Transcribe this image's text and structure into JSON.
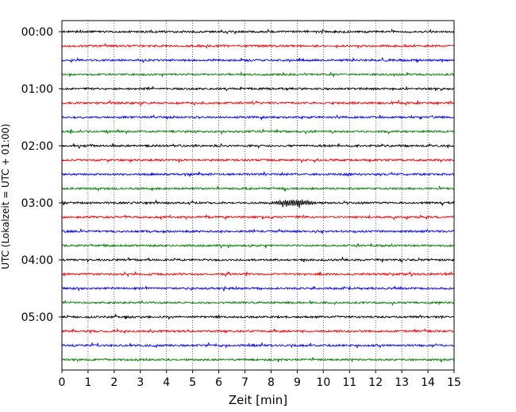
{
  "chart_data": {
    "type": "line",
    "title": "",
    "xlabel": "Zeit  [min]",
    "ylabel": "UTC (Lokalzeit = UTC + 01:00)",
    "xlim": [
      0,
      15
    ],
    "x_ticks": [
      0,
      1,
      2,
      3,
      4,
      5,
      6,
      7,
      8,
      9,
      10,
      11,
      12,
      13,
      14,
      15
    ],
    "y_tick_labels": [
      "00:00",
      "01:00",
      "02:00",
      "03:00",
      "04:00",
      "05:00"
    ],
    "minutes_per_trace": 15,
    "trace_start_times": [
      "00:00",
      "00:15",
      "00:30",
      "00:45",
      "01:00",
      "01:15",
      "01:30",
      "01:45",
      "02:00",
      "02:15",
      "02:30",
      "02:45",
      "03:00",
      "03:15",
      "03:30",
      "03:45",
      "04:00",
      "04:15",
      "04:30",
      "04:45",
      "05:00",
      "05:15",
      "05:30",
      "05:45"
    ],
    "trace_colors": [
      "#000000",
      "#ff0000",
      "#0000ff",
      "#008000"
    ],
    "grid": {
      "vertical": true,
      "style": "dotted"
    },
    "annotations": [
      {
        "trace": "03:00",
        "x_range": [
          7.8,
          9.8
        ],
        "description": "larger oscillation"
      }
    ]
  }
}
